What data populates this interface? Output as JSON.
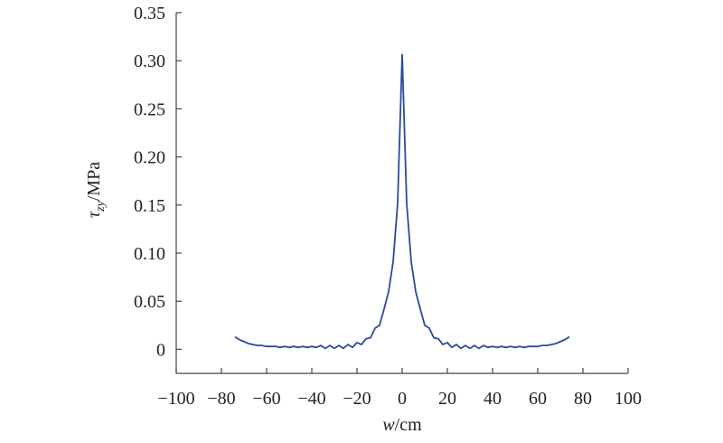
{
  "chart_data": {
    "type": "line",
    "x_label": [
      "w",
      "/cm"
    ],
    "y_label": [
      "τ",
      "zy",
      "/MPa"
    ],
    "xlim": [
      -100,
      100
    ],
    "xticks": [
      {
        "value": -100,
        "label": "−100"
      },
      {
        "value": -80,
        "label": "−80"
      },
      {
        "value": -60,
        "label": "−60"
      },
      {
        "value": -40,
        "label": "−40"
      },
      {
        "value": -20,
        "label": "−20"
      },
      0,
      20,
      40,
      60,
      80,
      100
    ],
    "ylim": [
      -0.025,
      0.35
    ],
    "yticks": [
      0,
      0.05,
      {
        "value": 0.1,
        "label": "0.10"
      },
      0.15,
      {
        "value": 0.2,
        "label": "0.20"
      },
      0.25,
      {
        "value": 0.3,
        "label": "0.30"
      },
      0.35
    ],
    "color": "#2b4a9e",
    "x": [
      -74,
      -72,
      -70,
      -68,
      -66,
      -64,
      -62,
      -60,
      -58,
      -56,
      -54,
      -52,
      -50,
      -48,
      -46,
      -44,
      -42,
      -40,
      -38,
      -36,
      -34,
      -32,
      -30,
      -28,
      -26,
      -24,
      -22,
      -20,
      -18,
      -16,
      -14,
      -12,
      -10,
      -8,
      -6,
      -4,
      -2,
      0,
      2,
      4,
      6,
      8,
      10,
      12,
      14,
      16,
      18,
      20,
      22,
      24,
      26,
      28,
      30,
      32,
      34,
      36,
      38,
      40,
      42,
      44,
      46,
      48,
      50,
      52,
      54,
      56,
      58,
      60,
      62,
      64,
      66,
      68,
      70,
      72,
      74
    ],
    "values": [
      0.013,
      0.01,
      0.008,
      0.006,
      0.005,
      0.004,
      0.004,
      0.003,
      0.003,
      0.003,
      0.002,
      0.003,
      0.002,
      0.003,
      0.002,
      0.003,
      0.002,
      0.003,
      0.002,
      0.004,
      0.001,
      0.004,
      0.001,
      0.004,
      0.001,
      0.005,
      0.002,
      0.007,
      0.005,
      0.011,
      0.012,
      0.022,
      0.025,
      0.042,
      0.06,
      0.091,
      0.152,
      0.307,
      0.152,
      0.091,
      0.06,
      0.042,
      0.025,
      0.022,
      0.012,
      0.011,
      0.005,
      0.007,
      0.002,
      0.005,
      0.001,
      0.004,
      0.001,
      0.004,
      0.001,
      0.004,
      0.002,
      0.003,
      0.002,
      0.003,
      0.002,
      0.003,
      0.002,
      0.003,
      0.002,
      0.003,
      0.003,
      0.003,
      0.004,
      0.004,
      0.005,
      0.006,
      0.008,
      0.01,
      0.013
    ]
  }
}
